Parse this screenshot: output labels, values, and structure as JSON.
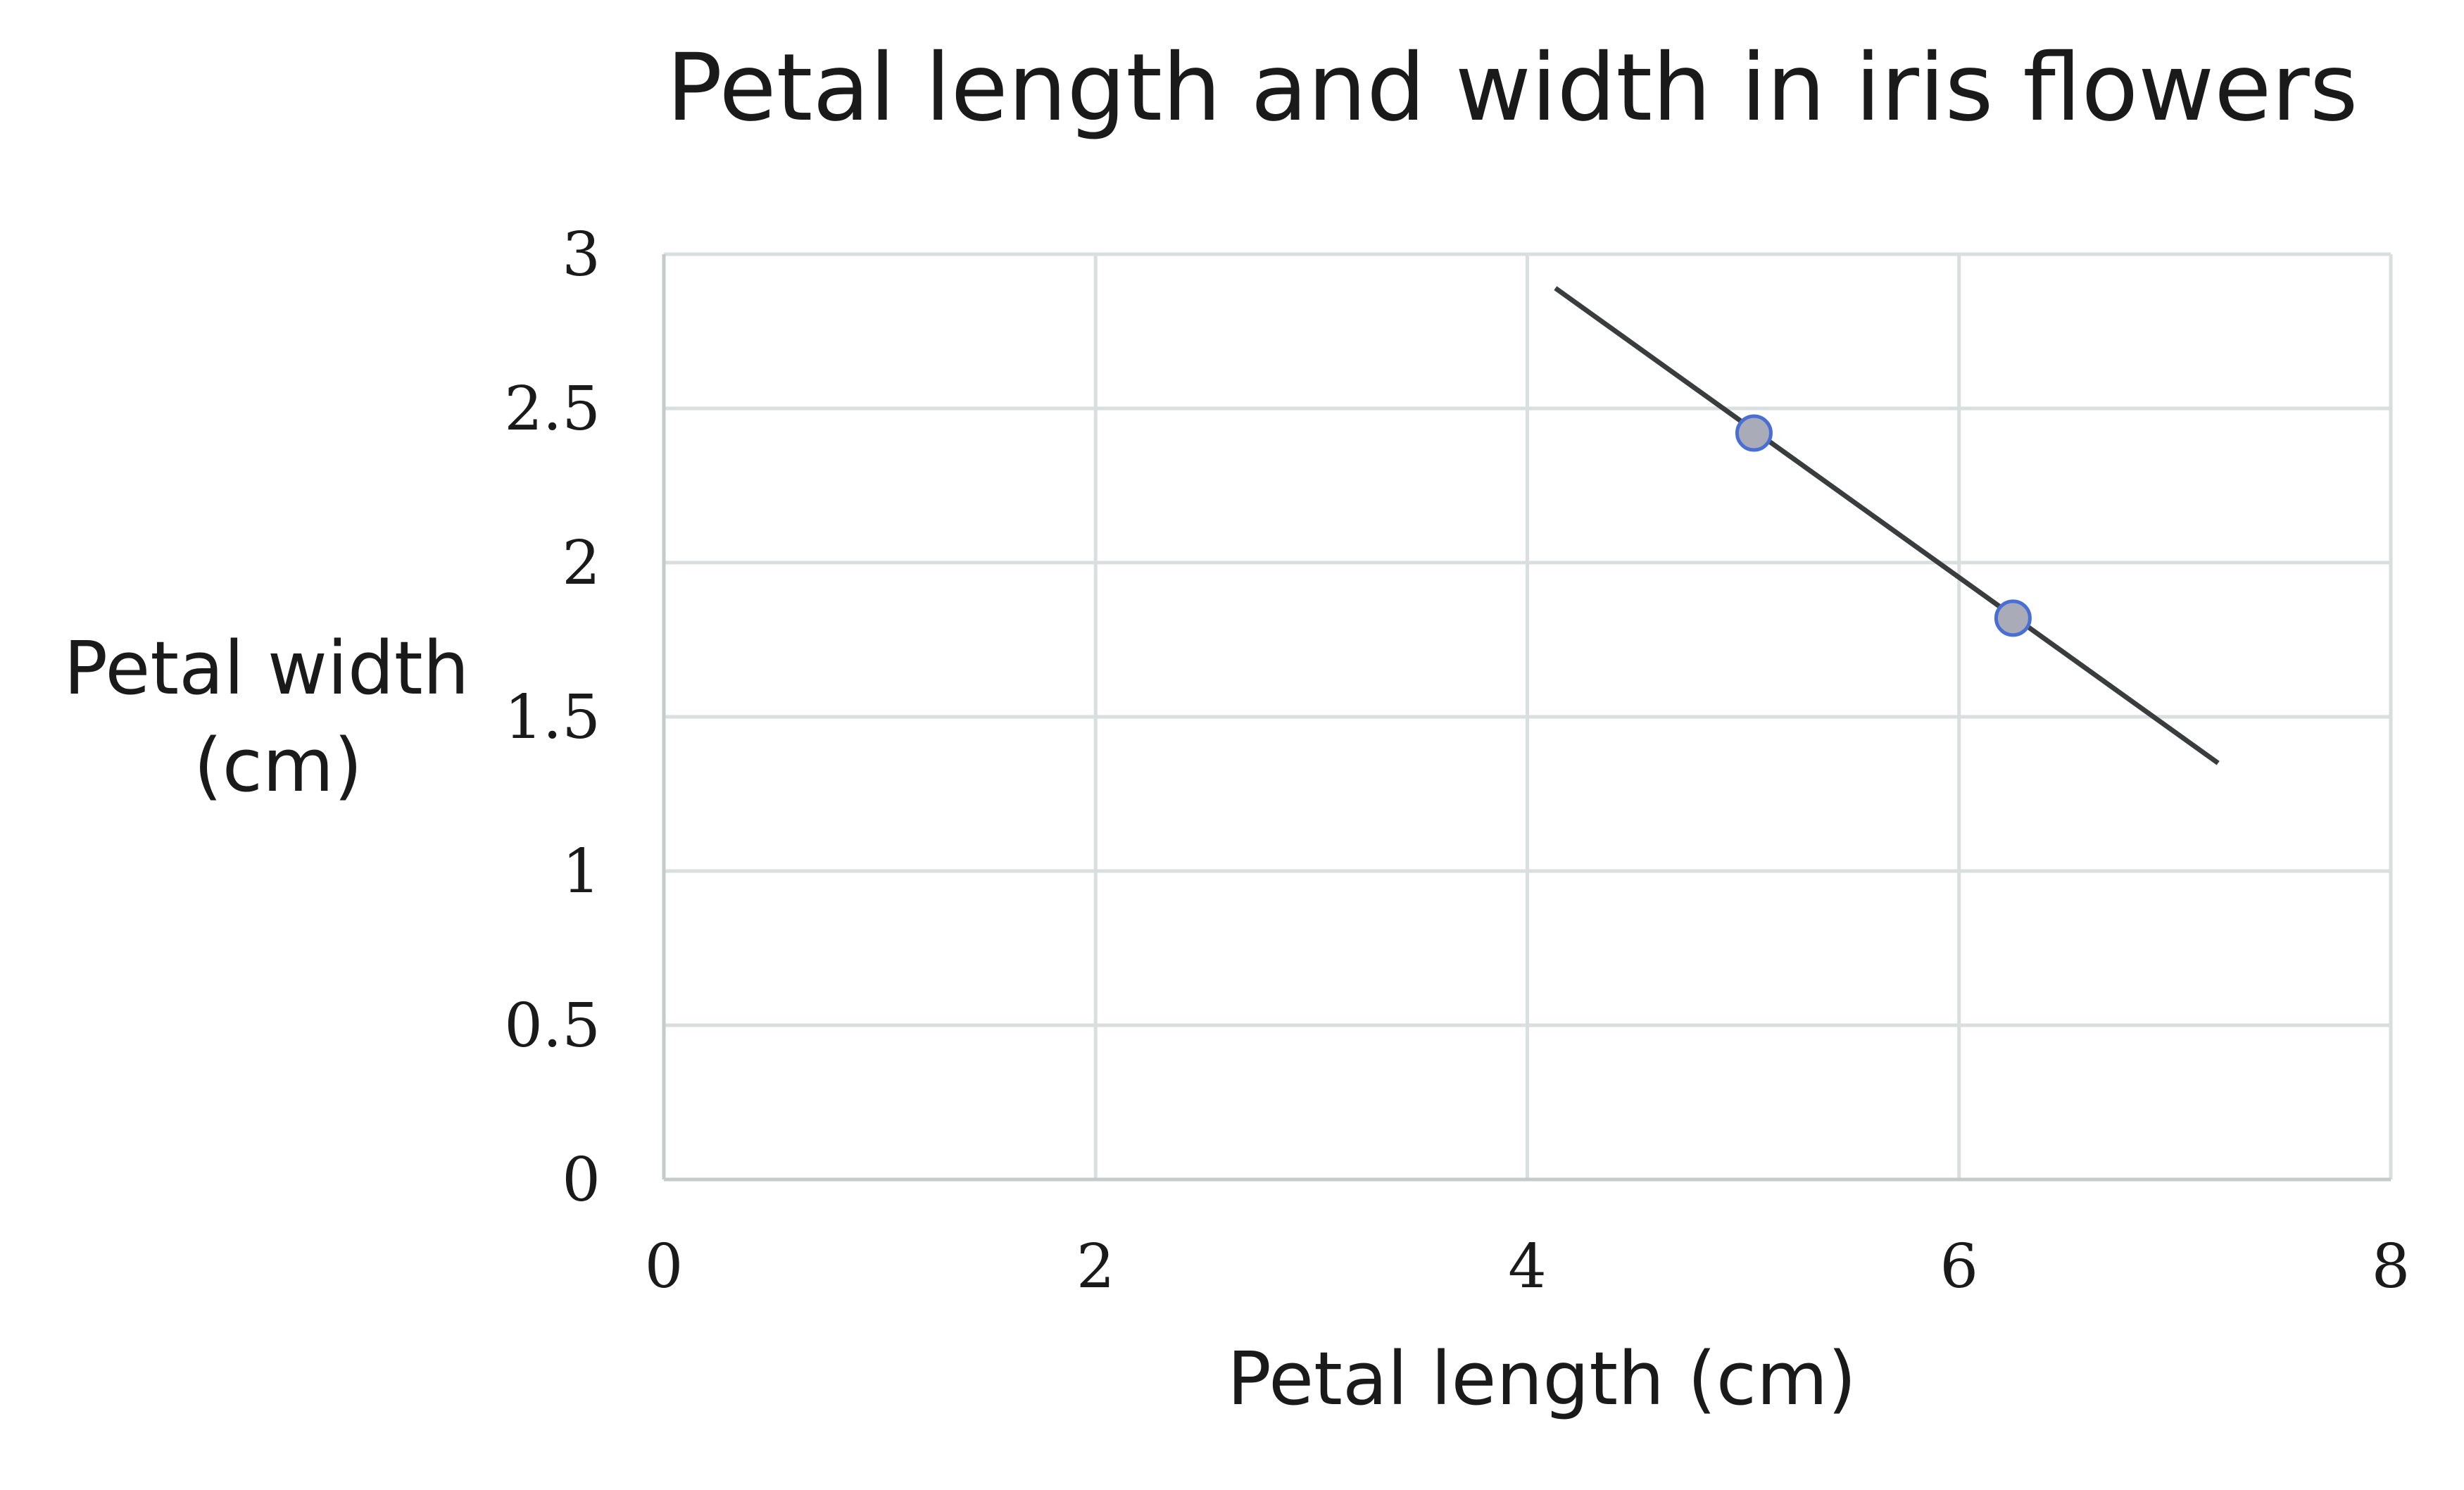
{
  "chart_data": {
    "type": "scatter",
    "title": "Petal length and width in iris flowers",
    "xlabel": "Petal length (cm)",
    "ylabel": [
      "Petal width",
      "(cm)"
    ],
    "xlim": [
      0,
      8
    ],
    "ylim": [
      0,
      3
    ],
    "x_ticks": [
      0,
      2,
      4,
      6,
      8
    ],
    "x_tick_labels": [
      "0",
      "2",
      "4",
      "6",
      "8"
    ],
    "y_ticks": [
      0,
      0.5,
      1,
      1.5,
      2,
      2.5,
      3
    ],
    "y_tick_labels": [
      "0",
      "0.5",
      "1",
      "1.5",
      "2",
      "2.5",
      "3"
    ],
    "grid": true,
    "legend": "none",
    "series": [
      {
        "points": [
          {
            "x": 5.05,
            "y": 2.42
          },
          {
            "x": 6.25,
            "y": 1.82
          }
        ],
        "marker_fill": "#a9acb8",
        "marker_edge": "#4a6fd4"
      }
    ],
    "trendline": {
      "from": {
        "x": 4.13,
        "y": 2.89
      },
      "to": {
        "x": 7.2,
        "y": 1.35
      },
      "color": "#3a3d3d"
    }
  }
}
